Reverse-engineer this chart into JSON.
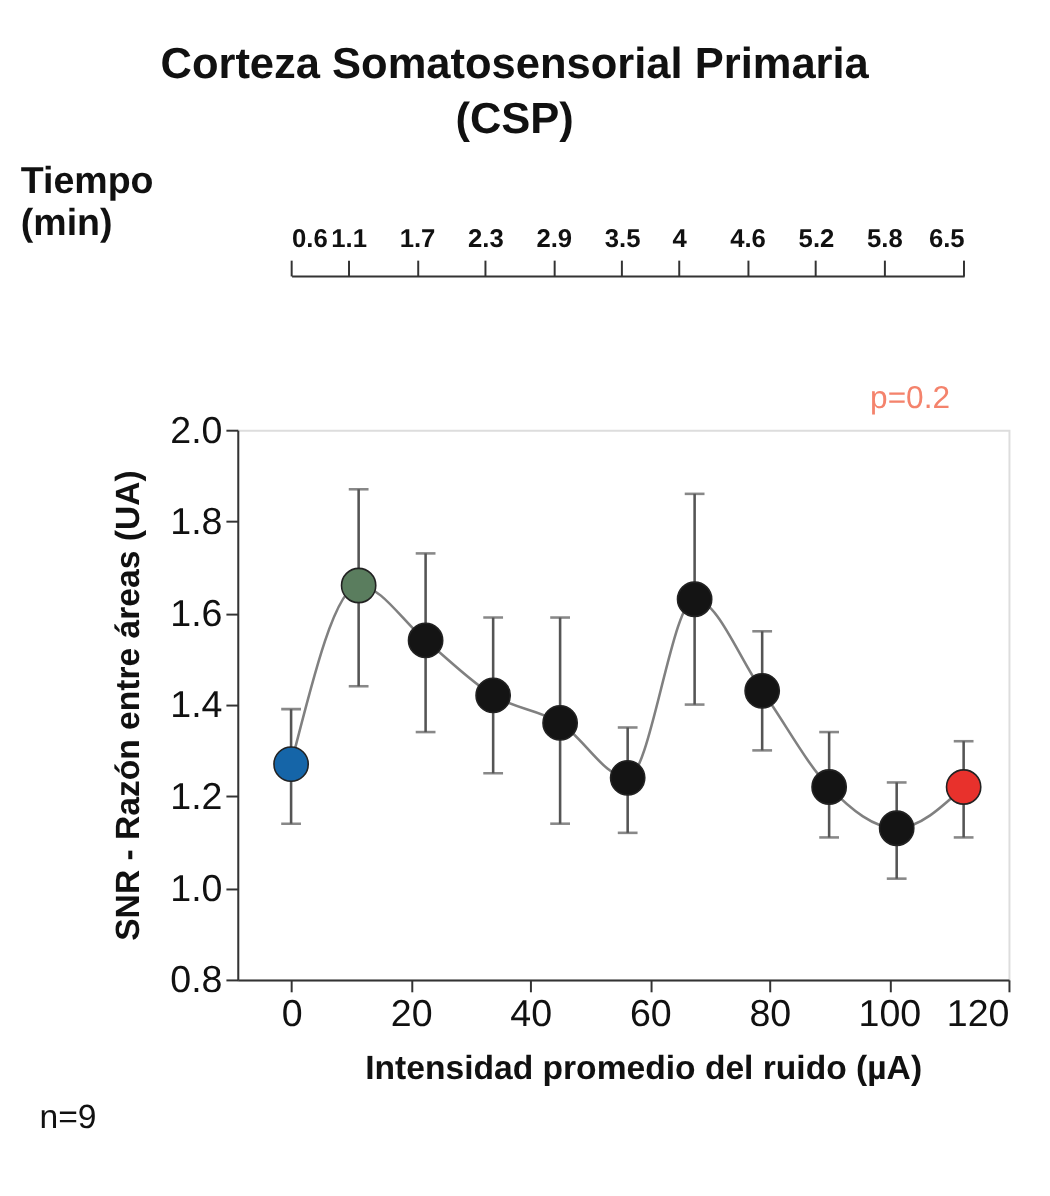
{
  "chart_data": {
    "type": "line",
    "title": "Corteza Somatosensorial Primaria\n(CSP)",
    "xlabel": "Intensidad promedio del ruido (µA)",
    "ylabel": "SNR - Razón entre áreas  (UA)",
    "x2label": "Tiempo\n(min)",
    "x": [
      0,
      11.3,
      22.5,
      33.8,
      45,
      56.3,
      67.5,
      78.8,
      90,
      101.3,
      112.5
    ],
    "series": [
      {
        "color": "#808080",
        "marker": "circle",
        "line_style": "solid",
        "colors": [
          "#1565a8",
          "#5a7d5e",
          "#141414",
          "#141414",
          "#141414",
          "#141414",
          "#141414",
          "#141414",
          "#141414",
          "#141414",
          "#e8312c"
        ],
        "values": [
          1.27,
          1.66,
          1.54,
          1.42,
          1.36,
          1.24,
          1.63,
          1.43,
          1.22,
          1.13,
          1.22
        ],
        "errors": [
          [
            1.14,
            1.39
          ],
          [
            1.44,
            1.87
          ],
          [
            1.34,
            1.73
          ],
          [
            1.25,
            1.59
          ],
          [
            1.14,
            1.59
          ],
          [
            1.12,
            1.35
          ],
          [
            1.4,
            1.86
          ],
          [
            1.3,
            1.56
          ],
          [
            1.11,
            1.34
          ],
          [
            1.02,
            1.23
          ],
          [
            1.11,
            1.32
          ]
        ]
      }
    ],
    "xlim": [
      -9,
      120
    ],
    "xticks": [
      0,
      20,
      40,
      60,
      80,
      100,
      120
    ],
    "ylim": [
      0.8,
      2.0
    ],
    "yticks": [
      {
        "value": 0.8,
        "label": "0.8"
      },
      {
        "value": 1.0,
        "label": "1.0"
      },
      {
        "value": 1.2,
        "label": "1.2"
      },
      {
        "value": 1.4,
        "label": "1.4"
      },
      {
        "value": 1.6,
        "label": "1.6"
      },
      {
        "value": 1.8,
        "label": "1.8"
      },
      {
        "value": 2.0,
        "label": "2.0"
      }
    ],
    "x2lim": [
      0.6,
      6.5
    ],
    "x2ticks": [
      0.6,
      1.1,
      1.7,
      2.3,
      2.9,
      3.5,
      4,
      4.6,
      5.2,
      5.8,
      6.5
    ],
    "annotations": [
      "p=0.2",
      "n=9"
    ],
    "grid": false
  }
}
